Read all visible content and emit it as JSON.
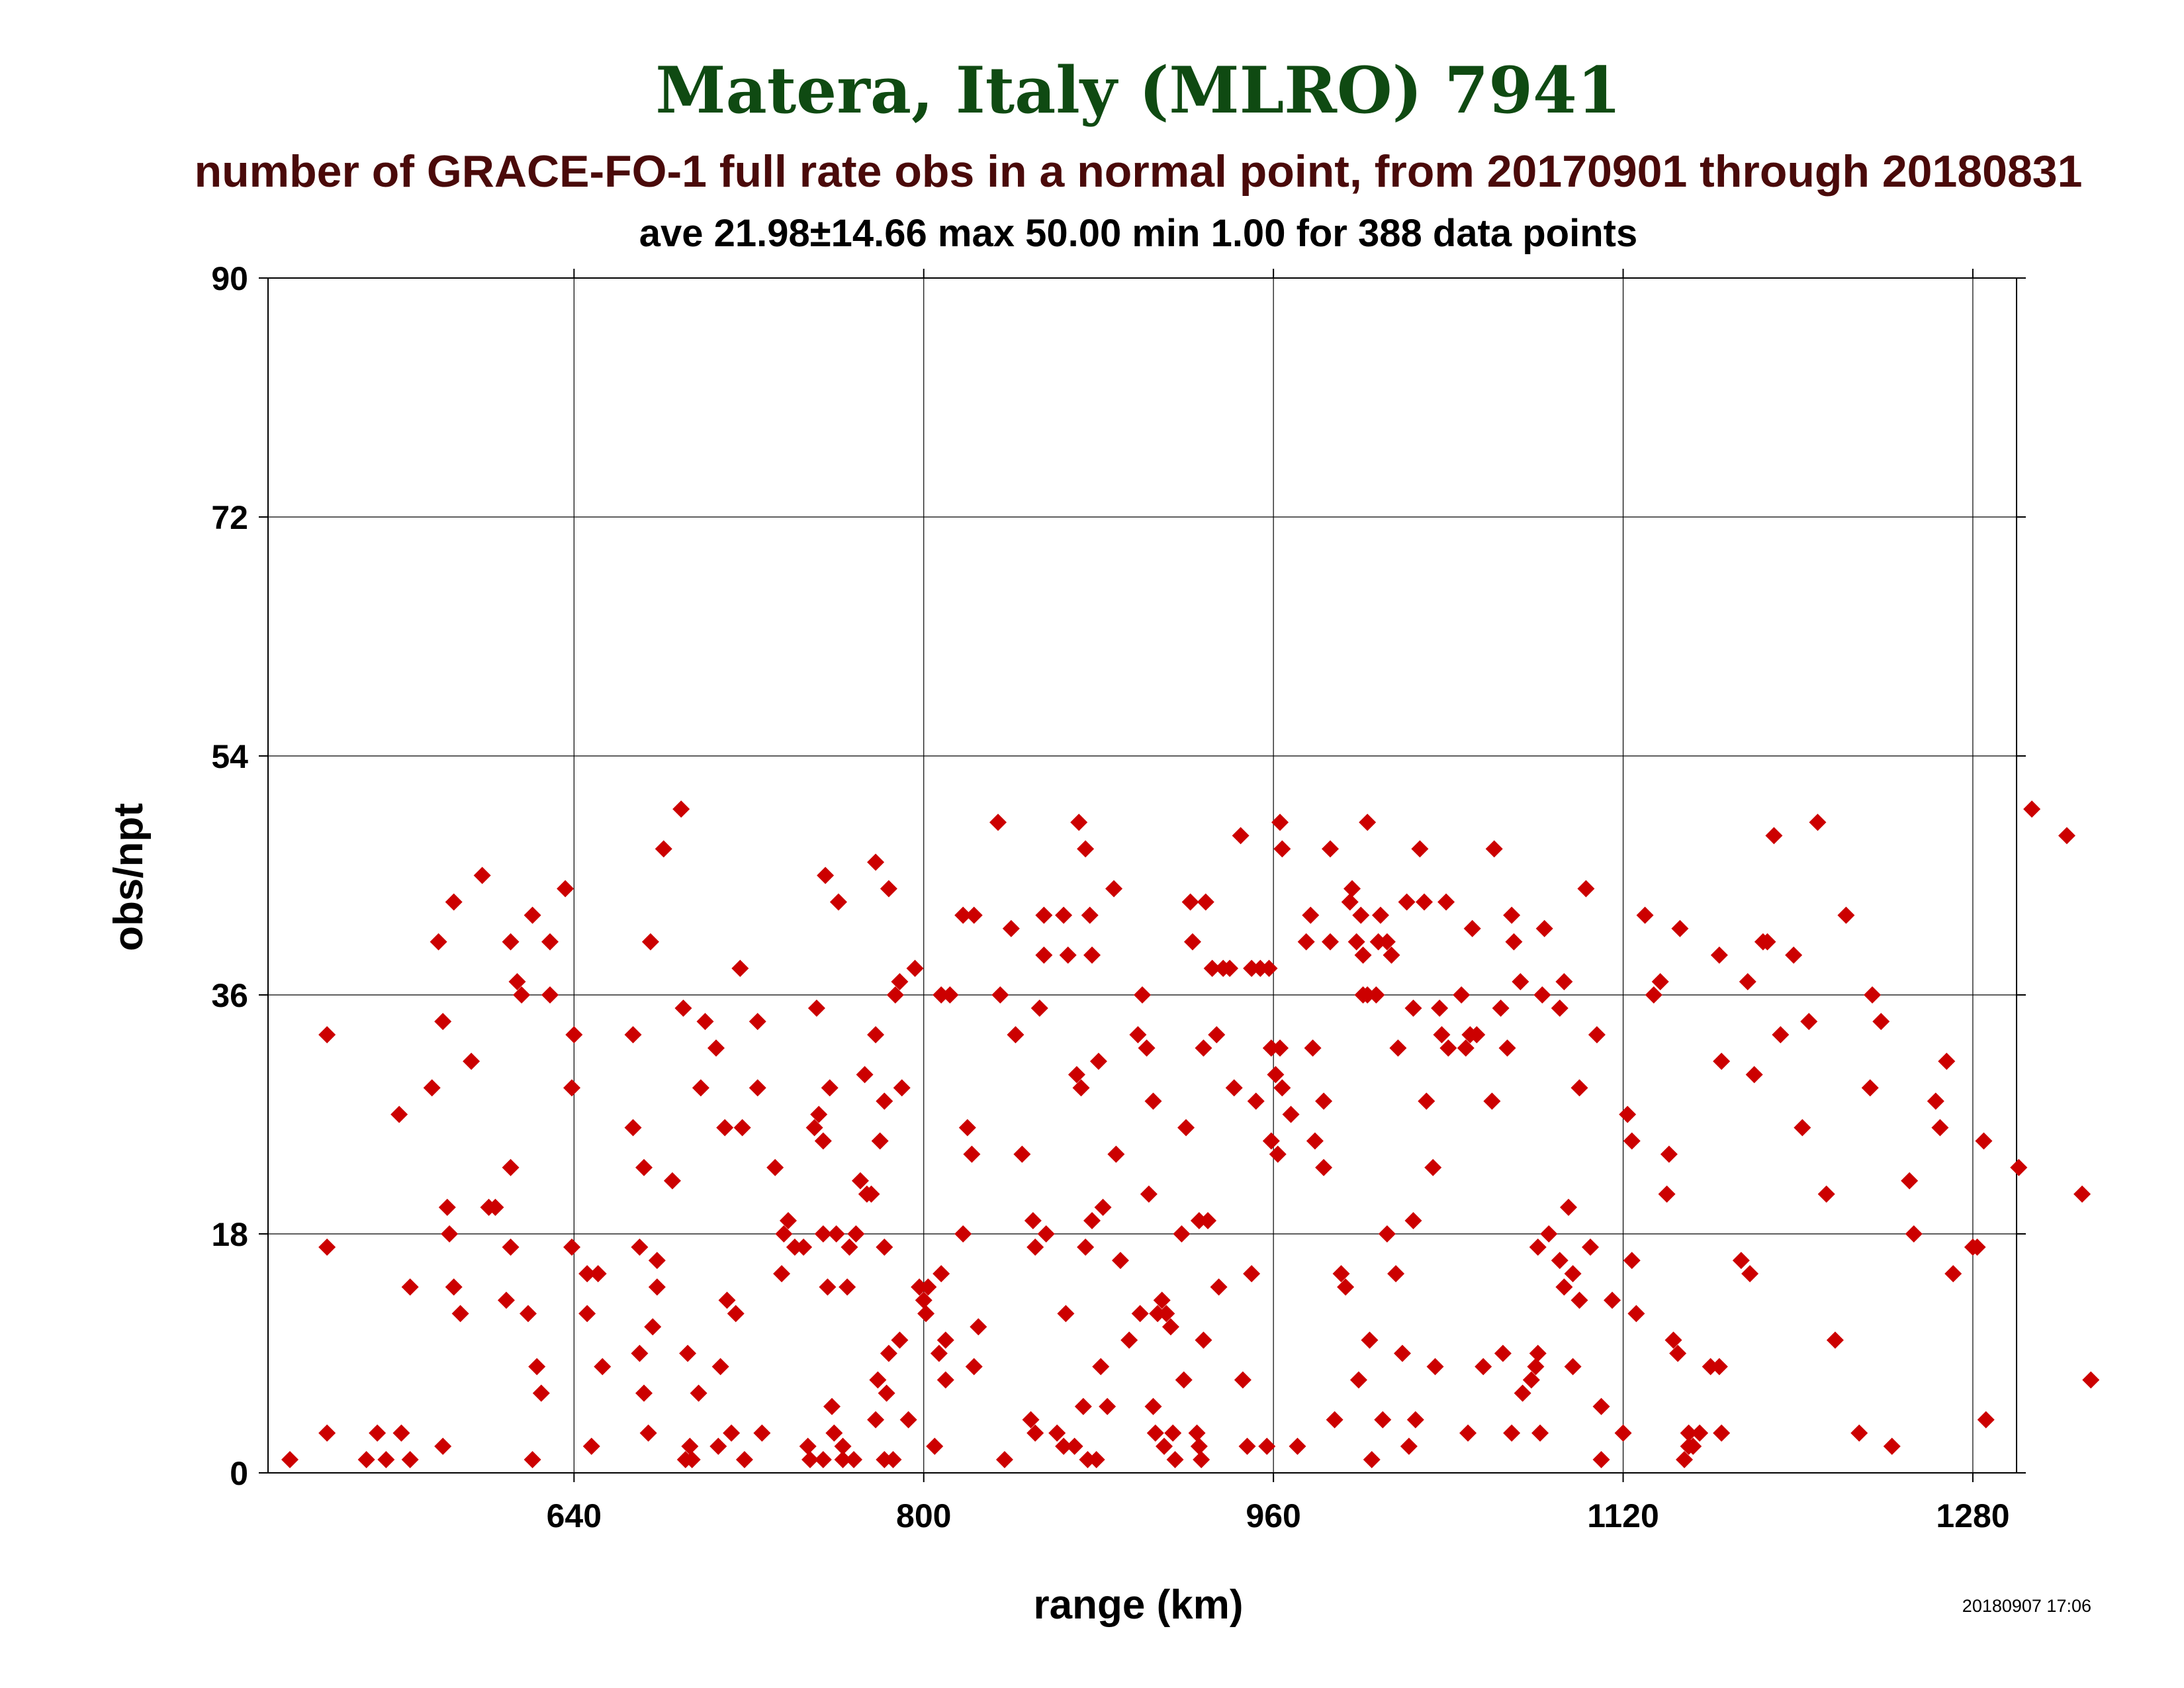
{
  "chart_data": {
    "type": "scatter",
    "title": "Matera, Italy (MLRO) 7941",
    "subtitle": "number of GRACE-FO-1 full rate obs in a normal point, from 20170901 through 20180831",
    "stats": "ave 21.98±14.66 max 50.00 min 1.00 for 388 data points",
    "xlabel": "range (km)",
    "ylabel": "obs/npt",
    "xlim": [
      500,
      1300
    ],
    "ylim": [
      0,
      90
    ],
    "xticks": [
      640,
      800,
      960,
      1120,
      1280
    ],
    "yticks": [
      0,
      18,
      36,
      54,
      72,
      90
    ],
    "grid": true,
    "marker_color": "#cc0000",
    "timestamp": "20180907 17:06",
    "points": [
      [
        510,
        1
      ],
      [
        527,
        33
      ],
      [
        527,
        17
      ],
      [
        527,
        3
      ],
      [
        545,
        1
      ],
      [
        550,
        3
      ],
      [
        554,
        1
      ],
      [
        560,
        27
      ],
      [
        561,
        3
      ],
      [
        565,
        14
      ],
      [
        565,
        1
      ],
      [
        575,
        29
      ],
      [
        578,
        40
      ],
      [
        580,
        34
      ],
      [
        580,
        2
      ],
      [
        582,
        20
      ],
      [
        583,
        18
      ],
      [
        585,
        43
      ],
      [
        585,
        14
      ],
      [
        588,
        12
      ],
      [
        593,
        31
      ],
      [
        598,
        45
      ],
      [
        601,
        20
      ],
      [
        604,
        20
      ],
      [
        609,
        13
      ],
      [
        611,
        40
      ],
      [
        611,
        23
      ],
      [
        611,
        17
      ],
      [
        614,
        37
      ],
      [
        616,
        36
      ],
      [
        619,
        12
      ],
      [
        621,
        42
      ],
      [
        621,
        1
      ],
      [
        623,
        8
      ],
      [
        625,
        6
      ],
      [
        629,
        40
      ],
      [
        629,
        36
      ],
      [
        636,
        44
      ],
      [
        639,
        29
      ],
      [
        639,
        17
      ],
      [
        640,
        33
      ],
      [
        646,
        15
      ],
      [
        646,
        12
      ],
      [
        648,
        2
      ],
      [
        651,
        15
      ],
      [
        653,
        8
      ],
      [
        667,
        33
      ],
      [
        667,
        26
      ],
      [
        670,
        9
      ],
      [
        670,
        17
      ],
      [
        672,
        23
      ],
      [
        672,
        6
      ],
      [
        674,
        3
      ],
      [
        675,
        40
      ],
      [
        676,
        11
      ],
      [
        678,
        16
      ],
      [
        678,
        14
      ],
      [
        681,
        47
      ],
      [
        685,
        22
      ],
      [
        689,
        50
      ],
      [
        690,
        35
      ],
      [
        691,
        1
      ],
      [
        692,
        9
      ],
      [
        693,
        2
      ],
      [
        694,
        1
      ],
      [
        697,
        6
      ],
      [
        698,
        29
      ],
      [
        700,
        34
      ],
      [
        705,
        32
      ],
      [
        706,
        2
      ],
      [
        707,
        8
      ],
      [
        709,
        26
      ],
      [
        710,
        13
      ],
      [
        712,
        3
      ],
      [
        714,
        12
      ],
      [
        716,
        38
      ],
      [
        717,
        26
      ],
      [
        718,
        1
      ],
      [
        724,
        29
      ],
      [
        724,
        34
      ],
      [
        726,
        3
      ],
      [
        732,
        23
      ],
      [
        735,
        15
      ],
      [
        736,
        18
      ],
      [
        738,
        19
      ],
      [
        741,
        17
      ],
      [
        745,
        17
      ],
      [
        747,
        2
      ],
      [
        748,
        1
      ],
      [
        750,
        26
      ],
      [
        751,
        35
      ],
      [
        752,
        27
      ],
      [
        754,
        25
      ],
      [
        754,
        18
      ],
      [
        754,
        1
      ],
      [
        755,
        45
      ],
      [
        756,
        14
      ],
      [
        757,
        29
      ],
      [
        758,
        5
      ],
      [
        759,
        3
      ],
      [
        760,
        18
      ],
      [
        761,
        43
      ],
      [
        763,
        2
      ],
      [
        763,
        1
      ],
      [
        765,
        14
      ],
      [
        766,
        17
      ],
      [
        768,
        1
      ],
      [
        769,
        18
      ],
      [
        771,
        22
      ],
      [
        773,
        30
      ],
      [
        774,
        21
      ],
      [
        776,
        21
      ],
      [
        778,
        46
      ],
      [
        778,
        33
      ],
      [
        778,
        4
      ],
      [
        779,
        7
      ],
      [
        780,
        25
      ],
      [
        782,
        28
      ],
      [
        782,
        17
      ],
      [
        782,
        1
      ],
      [
        783,
        6
      ],
      [
        784,
        44
      ],
      [
        784,
        9
      ],
      [
        786,
        1
      ],
      [
        787,
        36
      ],
      [
        789,
        37
      ],
      [
        789,
        10
      ],
      [
        790,
        29
      ],
      [
        793,
        4
      ],
      [
        796,
        38
      ],
      [
        798,
        14
      ],
      [
        800,
        13
      ],
      [
        801,
        12
      ],
      [
        802,
        14
      ],
      [
        805,
        2
      ],
      [
        807,
        9
      ],
      [
        808,
        36
      ],
      [
        808,
        15
      ],
      [
        810,
        7
      ],
      [
        810,
        10
      ],
      [
        812,
        36
      ],
      [
        818,
        42
      ],
      [
        818,
        18
      ],
      [
        820,
        26
      ],
      [
        822,
        24
      ],
      [
        823,
        42
      ],
      [
        823,
        8
      ],
      [
        825,
        11
      ],
      [
        834,
        49
      ],
      [
        835,
        36
      ],
      [
        837,
        1
      ],
      [
        840,
        41
      ],
      [
        842,
        33
      ],
      [
        845,
        24
      ],
      [
        849,
        4
      ],
      [
        850,
        19
      ],
      [
        851,
        3
      ],
      [
        851,
        17
      ],
      [
        853,
        35
      ],
      [
        855,
        39
      ],
      [
        855,
        42
      ],
      [
        856,
        18
      ],
      [
        861,
        3
      ],
      [
        864,
        2
      ],
      [
        864,
        42
      ],
      [
        865,
        12
      ],
      [
        866,
        39
      ],
      [
        869,
        2
      ],
      [
        870,
        30
      ],
      [
        871,
        49
      ],
      [
        872,
        29
      ],
      [
        873,
        5
      ],
      [
        874,
        47
      ],
      [
        874,
        17
      ],
      [
        875,
        1
      ],
      [
        876,
        42
      ],
      [
        877,
        19
      ],
      [
        877,
        39
      ],
      [
        879,
        1
      ],
      [
        880,
        31
      ],
      [
        881,
        8
      ],
      [
        882,
        20
      ],
      [
        884,
        5
      ],
      [
        887,
        44
      ],
      [
        888,
        24
      ],
      [
        890,
        16
      ],
      [
        894,
        10
      ],
      [
        898,
        33
      ],
      [
        899,
        12
      ],
      [
        900,
        36
      ],
      [
        902,
        32
      ],
      [
        903,
        21
      ],
      [
        905,
        5
      ],
      [
        905,
        28
      ],
      [
        906,
        3
      ],
      [
        907,
        12
      ],
      [
        909,
        13
      ],
      [
        910,
        2
      ],
      [
        911,
        12
      ],
      [
        913,
        11
      ],
      [
        914,
        3
      ],
      [
        915,
        1
      ],
      [
        918,
        18
      ],
      [
        919,
        7
      ],
      [
        920,
        26
      ],
      [
        922,
        43
      ],
      [
        923,
        40
      ],
      [
        925,
        3
      ],
      [
        926,
        2
      ],
      [
        926,
        19
      ],
      [
        927,
        1
      ],
      [
        928,
        10
      ],
      [
        928,
        32
      ],
      [
        929,
        43
      ],
      [
        930,
        19
      ],
      [
        932,
        38
      ],
      [
        934,
        33
      ],
      [
        935,
        14
      ],
      [
        937,
        38
      ],
      [
        940,
        38
      ],
      [
        942,
        29
      ],
      [
        945,
        48
      ],
      [
        946,
        7
      ],
      [
        948,
        2
      ],
      [
        950,
        15
      ],
      [
        950,
        38
      ],
      [
        952,
        28
      ],
      [
        954,
        38
      ],
      [
        957,
        2
      ],
      [
        958,
        38
      ],
      [
        959,
        25
      ],
      [
        959,
        32
      ],
      [
        961,
        30
      ],
      [
        962,
        24
      ],
      [
        963,
        32
      ],
      [
        963,
        49
      ],
      [
        964,
        47
      ],
      [
        964,
        29
      ],
      [
        968,
        27
      ],
      [
        971,
        2
      ],
      [
        975,
        40
      ],
      [
        977,
        42
      ],
      [
        978,
        32
      ],
      [
        979,
        25
      ],
      [
        983,
        23
      ],
      [
        983,
        28
      ],
      [
        986,
        40
      ],
      [
        986,
        47
      ],
      [
        988,
        4
      ],
      [
        991,
        15
      ],
      [
        993,
        14
      ],
      [
        995,
        43
      ],
      [
        996,
        44
      ],
      [
        998,
        40
      ],
      [
        999,
        7
      ],
      [
        1000,
        42
      ],
      [
        1001,
        36
      ],
      [
        1001,
        39
      ],
      [
        1003,
        49
      ],
      [
        1003,
        36
      ],
      [
        1004,
        10
      ],
      [
        1005,
        1
      ],
      [
        1007,
        36
      ],
      [
        1008,
        40
      ],
      [
        1009,
        42
      ],
      [
        1010,
        4
      ],
      [
        1012,
        40
      ],
      [
        1012,
        18
      ],
      [
        1014,
        39
      ],
      [
        1016,
        15
      ],
      [
        1017,
        32
      ],
      [
        1019,
        9
      ],
      [
        1021,
        43
      ],
      [
        1022,
        2
      ],
      [
        1024,
        35
      ],
      [
        1024,
        19
      ],
      [
        1025,
        4
      ],
      [
        1027,
        47
      ],
      [
        1029,
        43
      ],
      [
        1030,
        28
      ],
      [
        1033,
        23
      ],
      [
        1034,
        8
      ],
      [
        1036,
        35
      ],
      [
        1037,
        33
      ],
      [
        1039,
        43
      ],
      [
        1040,
        32
      ],
      [
        1046,
        36
      ],
      [
        1048,
        32
      ],
      [
        1049,
        3
      ],
      [
        1050,
        33
      ],
      [
        1051,
        41
      ],
      [
        1053,
        33
      ],
      [
        1056,
        8
      ],
      [
        1060,
        28
      ],
      [
        1061,
        47
      ],
      [
        1064,
        35
      ],
      [
        1065,
        9
      ],
      [
        1067,
        32
      ],
      [
        1069,
        42
      ],
      [
        1069,
        3
      ],
      [
        1070,
        40
      ],
      [
        1073,
        37
      ],
      [
        1074,
        6
      ],
      [
        1078,
        7
      ],
      [
        1080,
        8
      ],
      [
        1081,
        9
      ],
      [
        1081,
        17
      ],
      [
        1082,
        3
      ],
      [
        1083,
        36
      ],
      [
        1084,
        41
      ],
      [
        1086,
        18
      ],
      [
        1091,
        35
      ],
      [
        1091,
        16
      ],
      [
        1093,
        37
      ],
      [
        1093,
        14
      ],
      [
        1095,
        20
      ],
      [
        1097,
        8
      ],
      [
        1097,
        15
      ],
      [
        1100,
        29
      ],
      [
        1100,
        13
      ],
      [
        1103,
        44
      ],
      [
        1105,
        17
      ],
      [
        1108,
        33
      ],
      [
        1110,
        1
      ],
      [
        1110,
        5
      ],
      [
        1115,
        13
      ],
      [
        1120,
        3
      ],
      [
        1122,
        27
      ],
      [
        1124,
        25
      ],
      [
        1124,
        16
      ],
      [
        1126,
        12
      ],
      [
        1130,
        42
      ],
      [
        1134,
        36
      ],
      [
        1137,
        37
      ],
      [
        1140,
        21
      ],
      [
        1141,
        24
      ],
      [
        1143,
        10
      ],
      [
        1145,
        9
      ],
      [
        1146,
        41
      ],
      [
        1148,
        1
      ],
      [
        1150,
        3
      ],
      [
        1150,
        2
      ],
      [
        1152,
        2
      ],
      [
        1155,
        3
      ],
      [
        1160,
        8
      ],
      [
        1164,
        8
      ],
      [
        1164,
        39
      ],
      [
        1165,
        3
      ],
      [
        1165,
        31
      ],
      [
        1174,
        16
      ],
      [
        1177,
        37
      ],
      [
        1178,
        15
      ],
      [
        1180,
        30
      ],
      [
        1184,
        40
      ],
      [
        1186,
        40
      ],
      [
        1189,
        48
      ],
      [
        1192,
        33
      ],
      [
        1198,
        39
      ],
      [
        1202,
        26
      ],
      [
        1205,
        34
      ],
      [
        1209,
        49
      ],
      [
        1213,
        21
      ],
      [
        1217,
        10
      ],
      [
        1222,
        42
      ],
      [
        1228,
        3
      ],
      [
        1233,
        29
      ],
      [
        1234,
        36
      ],
      [
        1238,
        34
      ],
      [
        1243,
        2
      ],
      [
        1251,
        22
      ],
      [
        1253,
        18
      ],
      [
        1263,
        28
      ],
      [
        1265,
        26
      ],
      [
        1268,
        31
      ],
      [
        1271,
        15
      ],
      [
        1280,
        17
      ],
      [
        1282,
        17
      ],
      [
        1285,
        25
      ],
      [
        1286,
        4
      ],
      [
        1301,
        23
      ],
      [
        1307,
        50
      ],
      [
        1323,
        48
      ],
      [
        1330,
        21
      ],
      [
        1334,
        7
      ]
    ]
  }
}
